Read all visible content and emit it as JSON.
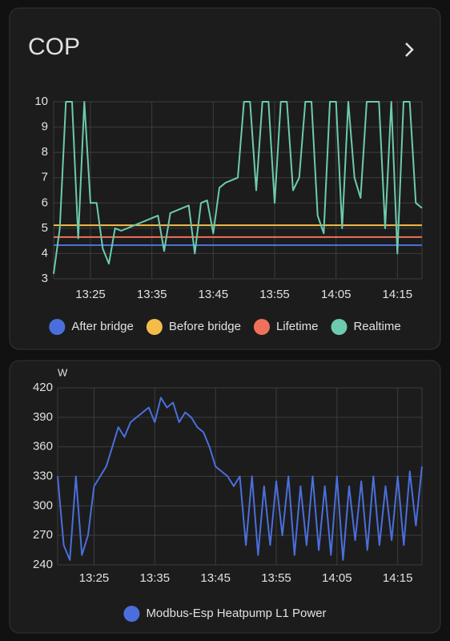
{
  "card": {
    "title": "COP"
  },
  "chart_data": [
    {
      "type": "line",
      "x": [
        "13:19",
        "13:20",
        "13:21",
        "13:22",
        "13:23",
        "13:24",
        "13:25",
        "13:26",
        "13:27",
        "13:28",
        "13:29",
        "13:30",
        "13:31",
        "13:32",
        "13:33",
        "13:34",
        "13:35",
        "13:36",
        "13:37",
        "13:38",
        "13:39",
        "13:40",
        "13:41",
        "13:42",
        "13:43",
        "13:44",
        "13:45",
        "13:46",
        "13:47",
        "13:48",
        "13:49",
        "13:50",
        "13:51",
        "13:52",
        "13:53",
        "13:54",
        "13:55",
        "13:56",
        "13:57",
        "13:58",
        "13:59",
        "14:00",
        "14:01",
        "14:02",
        "14:03",
        "14:04",
        "14:05",
        "14:06",
        "14:07",
        "14:08",
        "14:09",
        "14:10",
        "14:11",
        "14:12",
        "14:13",
        "14:14",
        "14:15",
        "14:16",
        "14:17",
        "14:18",
        "14:19"
      ],
      "xlim": [
        "13:19",
        "14:19"
      ],
      "xticks": [
        "13:25",
        "13:35",
        "13:45",
        "13:55",
        "14:05",
        "14:15"
      ],
      "ylim": [
        3,
        10
      ],
      "yticks": [
        3,
        4,
        5,
        6,
        7,
        8,
        9,
        10
      ],
      "grid": true,
      "series": [
        {
          "name": "After bridge",
          "color": "#4a6fdc",
          "values": [
            4.33,
            4.33,
            4.33,
            4.33,
            4.33,
            4.33,
            4.33,
            4.33,
            4.33,
            4.33,
            4.33,
            4.33,
            4.33,
            4.33,
            4.33,
            4.33,
            4.33,
            4.33,
            4.33,
            4.33,
            4.33,
            4.33,
            4.33,
            4.33,
            4.33,
            4.33,
            4.33,
            4.33,
            4.33,
            4.33,
            4.33,
            4.33,
            4.33,
            4.33,
            4.33,
            4.33,
            4.33,
            4.33,
            4.33,
            4.33,
            4.33,
            4.33,
            4.33,
            4.33,
            4.33,
            4.33,
            4.33,
            4.33,
            4.33,
            4.33,
            4.33,
            4.33,
            4.33,
            4.33,
            4.33,
            4.33,
            4.33,
            4.33,
            4.33,
            4.33,
            4.33
          ]
        },
        {
          "name": "Before bridge",
          "color": "#f4bd4a",
          "values": [
            5.12,
            5.12,
            5.12,
            5.12,
            5.12,
            5.12,
            5.12,
            5.12,
            5.12,
            5.12,
            5.12,
            5.12,
            5.12,
            5.12,
            5.12,
            5.12,
            5.12,
            5.12,
            5.12,
            5.12,
            5.12,
            5.12,
            5.12,
            5.12,
            5.12,
            5.12,
            5.12,
            5.12,
            5.12,
            5.12,
            5.12,
            5.12,
            5.12,
            5.12,
            5.12,
            5.12,
            5.12,
            5.12,
            5.12,
            5.12,
            5.12,
            5.12,
            5.12,
            5.12,
            5.12,
            5.12,
            5.12,
            5.12,
            5.12,
            5.12,
            5.12,
            5.12,
            5.12,
            5.12,
            5.12,
            5.12,
            5.12,
            5.12,
            5.12,
            5.12,
            5.12
          ]
        },
        {
          "name": "Lifetime",
          "color": "#f0715a",
          "values": [
            4.65,
            4.65,
            4.65,
            4.65,
            4.65,
            4.65,
            4.65,
            4.65,
            4.65,
            4.65,
            4.65,
            4.65,
            4.65,
            4.65,
            4.65,
            4.65,
            4.65,
            4.65,
            4.65,
            4.65,
            4.65,
            4.65,
            4.65,
            4.65,
            4.65,
            4.65,
            4.65,
            4.65,
            4.65,
            4.65,
            4.65,
            4.65,
            4.65,
            4.65,
            4.65,
            4.65,
            4.65,
            4.65,
            4.65,
            4.65,
            4.65,
            4.65,
            4.65,
            4.65,
            4.65,
            4.65,
            4.65,
            4.65,
            4.65,
            4.65,
            4.65,
            4.65,
            4.65,
            4.65,
            4.65,
            4.65,
            4.65,
            4.65,
            4.65,
            4.65,
            4.65
          ]
        },
        {
          "name": "Realtime",
          "color": "#6ccbae",
          "values": [
            3.2,
            5.0,
            10,
            10,
            4.6,
            10,
            6.0,
            6.0,
            4.2,
            3.6,
            5.0,
            4.9,
            5.0,
            5.1,
            5.2,
            5.3,
            5.4,
            5.5,
            4.1,
            5.6,
            5.7,
            5.8,
            5.9,
            4.0,
            6.0,
            6.1,
            4.8,
            6.6,
            6.8,
            6.9,
            7.0,
            10,
            10,
            6.5,
            10,
            10,
            6.0,
            10,
            10,
            6.5,
            7.0,
            10,
            10,
            5.5,
            4.8,
            10,
            10,
            5.0,
            10,
            7.0,
            6.2,
            10,
            10,
            10,
            5.0,
            10,
            4.0,
            10,
            10,
            6.0,
            5.8
          ]
        }
      ]
    },
    {
      "type": "line",
      "y_label": "W",
      "x": [
        "13:19",
        "13:20",
        "13:21",
        "13:22",
        "13:23",
        "13:24",
        "13:25",
        "13:26",
        "13:27",
        "13:28",
        "13:29",
        "13:30",
        "13:31",
        "13:32",
        "13:33",
        "13:34",
        "13:35",
        "13:36",
        "13:37",
        "13:38",
        "13:39",
        "13:40",
        "13:41",
        "13:42",
        "13:43",
        "13:44",
        "13:45",
        "13:46",
        "13:47",
        "13:48",
        "13:49",
        "13:50",
        "13:51",
        "13:52",
        "13:53",
        "13:54",
        "13:55",
        "13:56",
        "13:57",
        "13:58",
        "13:59",
        "14:00",
        "14:01",
        "14:02",
        "14:03",
        "14:04",
        "14:05",
        "14:06",
        "14:07",
        "14:08",
        "14:09",
        "14:10",
        "14:11",
        "14:12",
        "14:13",
        "14:14",
        "14:15",
        "14:16",
        "14:17",
        "14:18",
        "14:19"
      ],
      "xlim": [
        "13:19",
        "14:19"
      ],
      "xticks": [
        "13:25",
        "13:35",
        "13:45",
        "13:55",
        "14:05",
        "14:15"
      ],
      "ylim": [
        240,
        420
      ],
      "yticks": [
        240,
        270,
        300,
        330,
        360,
        390,
        420
      ],
      "grid": true,
      "series": [
        {
          "name": "Modbus-Esp Heatpump L1 Power",
          "color": "#4a6fdc",
          "values": [
            330,
            260,
            245,
            330,
            250,
            270,
            320,
            330,
            340,
            360,
            380,
            370,
            385,
            390,
            395,
            400,
            385,
            410,
            400,
            405,
            385,
            395,
            390,
            380,
            375,
            360,
            340,
            335,
            330,
            320,
            330,
            260,
            330,
            250,
            320,
            260,
            325,
            270,
            330,
            250,
            320,
            260,
            330,
            255,
            320,
            250,
            330,
            245,
            320,
            265,
            325,
            255,
            330,
            260,
            320,
            265,
            330,
            260,
            335,
            280,
            340
          ]
        }
      ]
    }
  ]
}
